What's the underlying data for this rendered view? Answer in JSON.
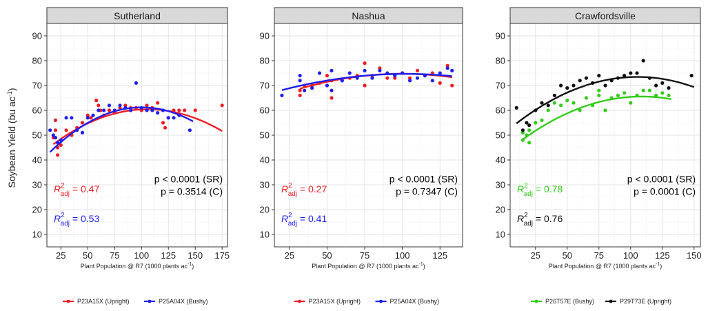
{
  "figure": {
    "ylabel": "Soybean Yield (bu ac",
    "ylabel_sup": "-1",
    "ylabel_close": ")",
    "xlabel": "Plant Population @ R7 (1000 plants ac",
    "xlabel_sup": "-1",
    "xlabel_close": ")"
  },
  "chart_data": [
    {
      "type": "scatter",
      "facet": "Sutherland",
      "xlim": [
        12,
        180
      ],
      "ylim": [
        5,
        95
      ],
      "xticks": [
        25,
        50,
        75,
        100,
        125,
        150,
        175
      ],
      "yticks": [
        10,
        20,
        30,
        40,
        50,
        60,
        70,
        80,
        90
      ],
      "grid": true,
      "stats": [
        "p < 0.0001 (SR)",
        "p = 0.3514 (C)"
      ],
      "series": [
        {
          "name": "P23A15X (Upright)",
          "color": "#ee1c25",
          "r2_value": "0.47",
          "fit": {
            "type": "quadratic",
            "xrange": [
              18,
              175
            ],
            "coef": [
              39.96,
              0.387,
              -0.00183
            ]
          },
          "points": [
            [
              18,
              49
            ],
            [
              20,
              52
            ],
            [
              20,
              56
            ],
            [
              22,
              45
            ],
            [
              22,
              42
            ],
            [
              25,
              48
            ],
            [
              25,
              46
            ],
            [
              30,
              52
            ],
            [
              35,
              50
            ],
            [
              40,
              53
            ],
            [
              45,
              55
            ],
            [
              50,
              58
            ],
            [
              53,
              57
            ],
            [
              58,
              64
            ],
            [
              60,
              62
            ],
            [
              62,
              60
            ],
            [
              65,
              58
            ],
            [
              70,
              60
            ],
            [
              75,
              59
            ],
            [
              80,
              61
            ],
            [
              85,
              62
            ],
            [
              90,
              61
            ],
            [
              95,
              61
            ],
            [
              100,
              60
            ],
            [
              105,
              62
            ],
            [
              110,
              61
            ],
            [
              115,
              63
            ],
            [
              120,
              55
            ],
            [
              122,
              53
            ],
            [
              125,
              57
            ],
            [
              130,
              60
            ],
            [
              135,
              60
            ],
            [
              140,
              60
            ],
            [
              150,
              60
            ],
            [
              175,
              62
            ]
          ]
        },
        {
          "name": "P25A04X (Bushy)",
          "color": "#1f1fee",
          "r2_value": "0.53",
          "fit": {
            "type": "quadratic",
            "xrange": [
              15,
              148
            ],
            "coef": [
              36.3,
              0.497,
              -0.00248
            ]
          },
          "points": [
            [
              15,
              52
            ],
            [
              18,
              50
            ],
            [
              20,
              49
            ],
            [
              22,
              47
            ],
            [
              25,
              48
            ],
            [
              30,
              57
            ],
            [
              35,
              57
            ],
            [
              40,
              52
            ],
            [
              45,
              51
            ],
            [
              50,
              57
            ],
            [
              55,
              58
            ],
            [
              60,
              60
            ],
            [
              65,
              60
            ],
            [
              70,
              62
            ],
            [
              75,
              60
            ],
            [
              80,
              62
            ],
            [
              85,
              61
            ],
            [
              90,
              60
            ],
            [
              95,
              71
            ],
            [
              100,
              61
            ],
            [
              105,
              60
            ],
            [
              110,
              60
            ],
            [
              115,
              59
            ],
            [
              120,
              60
            ],
            [
              125,
              57
            ],
            [
              130,
              57
            ],
            [
              135,
              58
            ],
            [
              145,
              52
            ]
          ]
        }
      ]
    },
    {
      "type": "scatter",
      "facet": "Nashua",
      "xlim": [
        15,
        140
      ],
      "ylim": [
        5,
        95
      ],
      "xticks": [
        25,
        50,
        75,
        100,
        125
      ],
      "yticks": [
        10,
        20,
        30,
        40,
        50,
        60,
        70,
        80,
        90
      ],
      "grid": true,
      "stats": [
        "p < 0.0001 (SR)",
        "p = 0.7347 (C)"
      ],
      "series": [
        {
          "name": "P23A15X (Upright)",
          "color": "#ee1c25",
          "r2_value": "0.27",
          "fit": {
            "type": "quadratic",
            "xrange": [
              32,
              133
            ],
            "coef": [
              61.73,
              0.26,
              -0.0013
            ]
          },
          "points": [
            [
              32,
              66
            ],
            [
              32,
              68
            ],
            [
              35,
              70
            ],
            [
              40,
              70
            ],
            [
              45,
              71
            ],
            [
              50,
              74
            ],
            [
              53,
              65
            ],
            [
              53,
              68
            ],
            [
              53,
              72
            ],
            [
              60,
              72
            ],
            [
              65,
              73
            ],
            [
              70,
              74
            ],
            [
              75,
              79
            ],
            [
              75,
              70
            ],
            [
              80,
              74
            ],
            [
              85,
              77
            ],
            [
              90,
              73
            ],
            [
              95,
              73
            ],
            [
              100,
              75
            ],
            [
              105,
              73
            ],
            [
              110,
              76
            ],
            [
              115,
              74
            ],
            [
              120,
              75
            ],
            [
              125,
              71
            ],
            [
              130,
              78
            ],
            [
              133,
              70
            ]
          ]
        },
        {
          "name": "P25A04X (Bushy)",
          "color": "#1f1fee",
          "r2_value": "0.41",
          "fit": {
            "type": "quadratic",
            "xrange": [
              20,
              133
            ],
            "coef": [
              64.57,
              0.197,
              -0.00096
            ]
          },
          "points": [
            [
              20,
              66
            ],
            [
              32,
              72
            ],
            [
              32,
              74
            ],
            [
              35,
              68
            ],
            [
              40,
              69
            ],
            [
              45,
              75
            ],
            [
              50,
              70
            ],
            [
              53,
              76
            ],
            [
              53,
              68
            ],
            [
              60,
              72
            ],
            [
              65,
              75
            ],
            [
              70,
              73
            ],
            [
              75,
              76
            ],
            [
              80,
              73
            ],
            [
              85,
              76
            ],
            [
              90,
              75
            ],
            [
              95,
              74
            ],
            [
              100,
              75
            ],
            [
              105,
              72
            ],
            [
              110,
              73
            ],
            [
              115,
              74
            ],
            [
              120,
              72
            ],
            [
              125,
              75
            ],
            [
              130,
              77
            ],
            [
              133,
              76
            ]
          ]
        }
      ]
    },
    {
      "type": "scatter",
      "facet": "Crawfordsville",
      "xlim": [
        5,
        155
      ],
      "ylim": [
        5,
        95
      ],
      "xticks": [
        25,
        50,
        75,
        100,
        125,
        150
      ],
      "yticks": [
        10,
        20,
        30,
        40,
        50,
        60,
        70,
        80,
        90
      ],
      "grid": true,
      "stats": [
        "p < 0.0001 (SR)",
        "p = 0.0001 (C)"
      ],
      "series": [
        {
          "name": "P26T57E (Bushy)",
          "color": "#33cc1a",
          "r2_value": "0.78",
          "fit": {
            "type": "quadratic",
            "xrange": [
              15,
              132
            ],
            "coef": [
              42.32,
              0.428,
              -0.00197
            ]
          },
          "points": [
            [
              15,
              48
            ],
            [
              15,
              51
            ],
            [
              18,
              50
            ],
            [
              20,
              47
            ],
            [
              20,
              52
            ],
            [
              25,
              55
            ],
            [
              30,
              56
            ],
            [
              35,
              60
            ],
            [
              40,
              63
            ],
            [
              45,
              62
            ],
            [
              50,
              64
            ],
            [
              55,
              63
            ],
            [
              60,
              60
            ],
            [
              65,
              65
            ],
            [
              70,
              62
            ],
            [
              75,
              66
            ],
            [
              75,
              68
            ],
            [
              80,
              60
            ],
            [
              85,
              65
            ],
            [
              90,
              66
            ],
            [
              95,
              67
            ],
            [
              100,
              63
            ],
            [
              105,
              66
            ],
            [
              110,
              68
            ],
            [
              115,
              68
            ],
            [
              120,
              66
            ],
            [
              125,
              67
            ],
            [
              130,
              66
            ]
          ]
        },
        {
          "name": "P29T73E (Upright)",
          "color": "#111111",
          "r2_value": "0.76",
          "fit": {
            "type": "quadratic",
            "xrange": [
              10,
              150
            ],
            "coef": [
              50.6,
              0.434,
              -0.00206
            ]
          },
          "points": [
            [
              10,
              61
            ],
            [
              15,
              52
            ],
            [
              18,
              55
            ],
            [
              20,
              54
            ],
            [
              25,
              60
            ],
            [
              30,
              63
            ],
            [
              35,
              62
            ],
            [
              40,
              66
            ],
            [
              45,
              70
            ],
            [
              50,
              69
            ],
            [
              55,
              70
            ],
            [
              60,
              72
            ],
            [
              65,
              73
            ],
            [
              70,
              71
            ],
            [
              75,
              74
            ],
            [
              80,
              70
            ],
            [
              85,
              72
            ],
            [
              90,
              73
            ],
            [
              95,
              74
            ],
            [
              100,
              75
            ],
            [
              105,
              75
            ],
            [
              110,
              80
            ],
            [
              115,
              73
            ],
            [
              120,
              70
            ],
            [
              125,
              71
            ],
            [
              130,
              69
            ],
            [
              148,
              74
            ]
          ]
        }
      ]
    }
  ]
}
